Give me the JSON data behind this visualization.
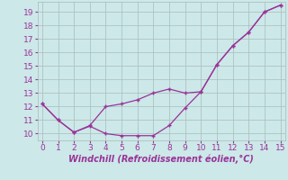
{
  "line1_x": [
    0,
    1,
    2,
    3,
    4,
    5,
    6,
    7,
    8,
    9,
    10,
    11,
    12,
    13,
    14,
    15
  ],
  "line1_y": [
    12.2,
    11.0,
    10.1,
    10.6,
    12.0,
    12.2,
    12.5,
    13.0,
    13.3,
    13.0,
    13.1,
    15.1,
    16.5,
    17.5,
    19.0,
    19.5
  ],
  "line2_x": [
    0,
    1,
    2,
    3,
    4,
    5,
    6,
    7,
    8,
    9,
    10,
    11,
    12,
    13,
    14,
    15
  ],
  "line2_y": [
    12.2,
    11.0,
    10.1,
    10.55,
    10.0,
    9.85,
    9.85,
    9.85,
    10.6,
    11.9,
    13.1,
    15.1,
    16.5,
    17.5,
    19.0,
    19.5
  ],
  "bg_color": "#cce8e8",
  "grid_color": "#aabbbb",
  "xlabel": "Windchill (Refroidissement éolien,°C)",
  "xlim": [
    -0.3,
    15.3
  ],
  "ylim": [
    9.5,
    19.75
  ],
  "yticks": [
    10,
    11,
    12,
    13,
    14,
    15,
    16,
    17,
    18,
    19
  ],
  "xticks": [
    0,
    1,
    2,
    3,
    4,
    5,
    6,
    7,
    8,
    9,
    10,
    11,
    12,
    13,
    14,
    15
  ],
  "xlabel_fontsize": 7,
  "tick_fontsize": 6.5,
  "line_color": "#993399"
}
